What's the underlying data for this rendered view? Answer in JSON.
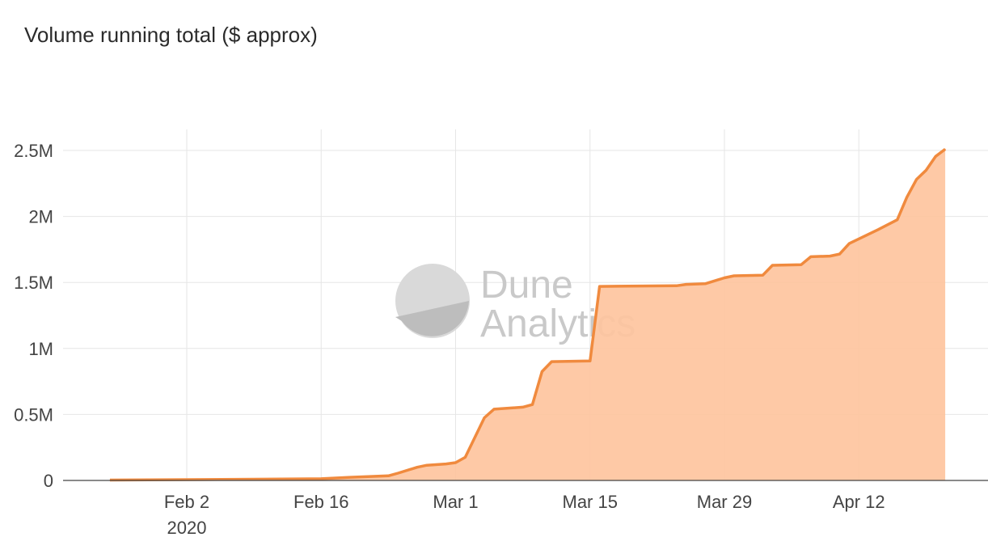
{
  "chart_data": {
    "type": "area",
    "title": "Volume running total ($ approx)",
    "xlabel": "",
    "ylabel": "",
    "xlim": [
      "2020-01-25",
      "2020-04-22"
    ],
    "ylim": [
      0,
      2500000
    ],
    "grid": true,
    "legend": "none",
    "x_ticks": [
      {
        "date": "2020-02-02",
        "label": "Feb 2",
        "sublabel": "2020"
      },
      {
        "date": "2020-02-16",
        "label": "Feb 16"
      },
      {
        "date": "2020-03-01",
        "label": "Mar 1"
      },
      {
        "date": "2020-03-15",
        "label": "Mar 15"
      },
      {
        "date": "2020-03-29",
        "label": "Mar 29"
      },
      {
        "date": "2020-04-12",
        "label": "Apr 12"
      }
    ],
    "y_ticks": [
      {
        "value": 0,
        "label": "0"
      },
      {
        "value": 500000,
        "label": "0.5M"
      },
      {
        "value": 1000000,
        "label": "1M"
      },
      {
        "value": 1500000,
        "label": "1.5M"
      },
      {
        "value": 2000000,
        "label": "2M"
      },
      {
        "value": 2500000,
        "label": "2.5M"
      }
    ],
    "series": [
      {
        "values": [
          [
            "2020-01-25",
            3000
          ],
          [
            "2020-02-02",
            6000
          ],
          [
            "2020-02-09",
            9000
          ],
          [
            "2020-02-16",
            13000
          ],
          [
            "2020-02-19",
            24000
          ],
          [
            "2020-02-23",
            35000
          ],
          [
            "2020-02-24",
            55000
          ],
          [
            "2020-02-26",
            100000
          ],
          [
            "2020-02-27",
            115000
          ],
          [
            "2020-02-29",
            125000
          ],
          [
            "2020-03-01",
            135000
          ],
          [
            "2020-03-02",
            175000
          ],
          [
            "2020-03-04",
            475000
          ],
          [
            "2020-03-05",
            540000
          ],
          [
            "2020-03-08",
            555000
          ],
          [
            "2020-03-09",
            575000
          ],
          [
            "2020-03-10",
            825000
          ],
          [
            "2020-03-11",
            900000
          ],
          [
            "2020-03-15",
            905000
          ],
          [
            "2020-03-16",
            1470000
          ],
          [
            "2020-03-24",
            1475000
          ],
          [
            "2020-03-25",
            1485000
          ],
          [
            "2020-03-27",
            1490000
          ],
          [
            "2020-03-29",
            1535000
          ],
          [
            "2020-03-30",
            1550000
          ],
          [
            "2020-04-02",
            1555000
          ],
          [
            "2020-04-03",
            1630000
          ],
          [
            "2020-04-06",
            1635000
          ],
          [
            "2020-04-07",
            1695000
          ],
          [
            "2020-04-09",
            1700000
          ],
          [
            "2020-04-10",
            1715000
          ],
          [
            "2020-04-11",
            1795000
          ],
          [
            "2020-04-14",
            1900000
          ],
          [
            "2020-04-16",
            1975000
          ],
          [
            "2020-04-17",
            2145000
          ],
          [
            "2020-04-18",
            2280000
          ],
          [
            "2020-04-19",
            2350000
          ],
          [
            "2020-04-20",
            2455000
          ],
          [
            "2020-04-21",
            2510000
          ]
        ]
      }
    ],
    "colors": {
      "line": "#f08a3e",
      "fill": "#fec49e",
      "grid": "#e6e6e6",
      "axis": "#444444"
    }
  },
  "watermark": {
    "line1": "Dune",
    "line2": "Analytics"
  }
}
